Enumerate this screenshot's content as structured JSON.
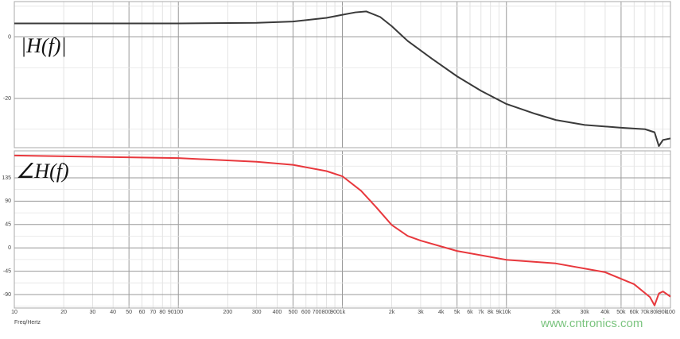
{
  "chart_data": [
    {
      "type": "line",
      "label": "|H(f)|",
      "xscale": "log",
      "xlim": [
        10,
        100000
      ],
      "ylim": [
        -36,
        11.5
      ],
      "yticks": [
        -20,
        0
      ],
      "grid": true,
      "x": [
        10,
        100,
        300,
        500,
        800,
        1000,
        1200,
        1400,
        1700,
        2000,
        2500,
        3500,
        5000,
        7000,
        10000,
        15000,
        20000,
        30000,
        50000,
        70000,
        80000,
        85000,
        90000,
        100000
      ],
      "series": [
        {
          "color": "#3a3a3a",
          "values": [
            4.4,
            4.4,
            4.6,
            5,
            6.2,
            7.2,
            8,
            8.3,
            6.5,
            3.5,
            -1.3,
            -7,
            -12.8,
            -17.5,
            -21.8,
            -25,
            -27,
            -28.6,
            -29.5,
            -30,
            -31,
            -35.5,
            -33.5,
            -33
          ]
        }
      ]
    },
    {
      "type": "line",
      "label": "∠H(f)",
      "xscale": "log",
      "xlim": [
        10,
        100000
      ],
      "ylim": [
        -116,
        187
      ],
      "yticks": [
        -90,
        -45,
        0,
        45,
        90,
        135
      ],
      "grid": true,
      "xlabel": "Freq/Hertz",
      "xticks": [
        10,
        20,
        30,
        40,
        50,
        60,
        70,
        80,
        90,
        100,
        200,
        300,
        400,
        500,
        600,
        700,
        800,
        900,
        {
          "value": 1000,
          "label": "1k"
        },
        {
          "value": 2000,
          "label": "2k"
        },
        {
          "value": 3000,
          "label": "3k"
        },
        {
          "value": 4000,
          "label": "4k"
        },
        {
          "value": 5000,
          "label": "5k"
        },
        {
          "value": 6000,
          "label": "6k"
        },
        {
          "value": 7000,
          "label": "7k"
        },
        {
          "value": 8000,
          "label": "8k"
        },
        {
          "value": 9000,
          "label": "9k"
        },
        {
          "value": 10000,
          "label": "10k"
        },
        {
          "value": 20000,
          "label": "20k"
        },
        {
          "value": 30000,
          "label": "30k"
        },
        {
          "value": 40000,
          "label": "40k"
        },
        {
          "value": 50000,
          "label": "50k"
        },
        {
          "value": 60000,
          "label": "60k"
        },
        {
          "value": 70000,
          "label": "70k"
        },
        {
          "value": 80000,
          "label": "80k"
        },
        {
          "value": 90000,
          "label": "90k"
        },
        {
          "value": 100000,
          "label": "100"
        }
      ],
      "x": [
        10,
        100,
        300,
        500,
        800,
        1000,
        1300,
        1600,
        2000,
        2500,
        3000,
        5000,
        10000,
        20000,
        40000,
        60000,
        75000,
        80000,
        85000,
        90000,
        100000
      ],
      "series": [
        {
          "color": "#e8383d",
          "values": [
            178,
            173,
            166,
            160,
            148,
            138,
            110,
            79,
            44,
            23,
            14,
            -6,
            -23,
            -30,
            -47,
            -70,
            -95,
            -111,
            -88,
            -84,
            -94
          ]
        }
      ]
    }
  ],
  "watermark": "www.cntronics.com"
}
